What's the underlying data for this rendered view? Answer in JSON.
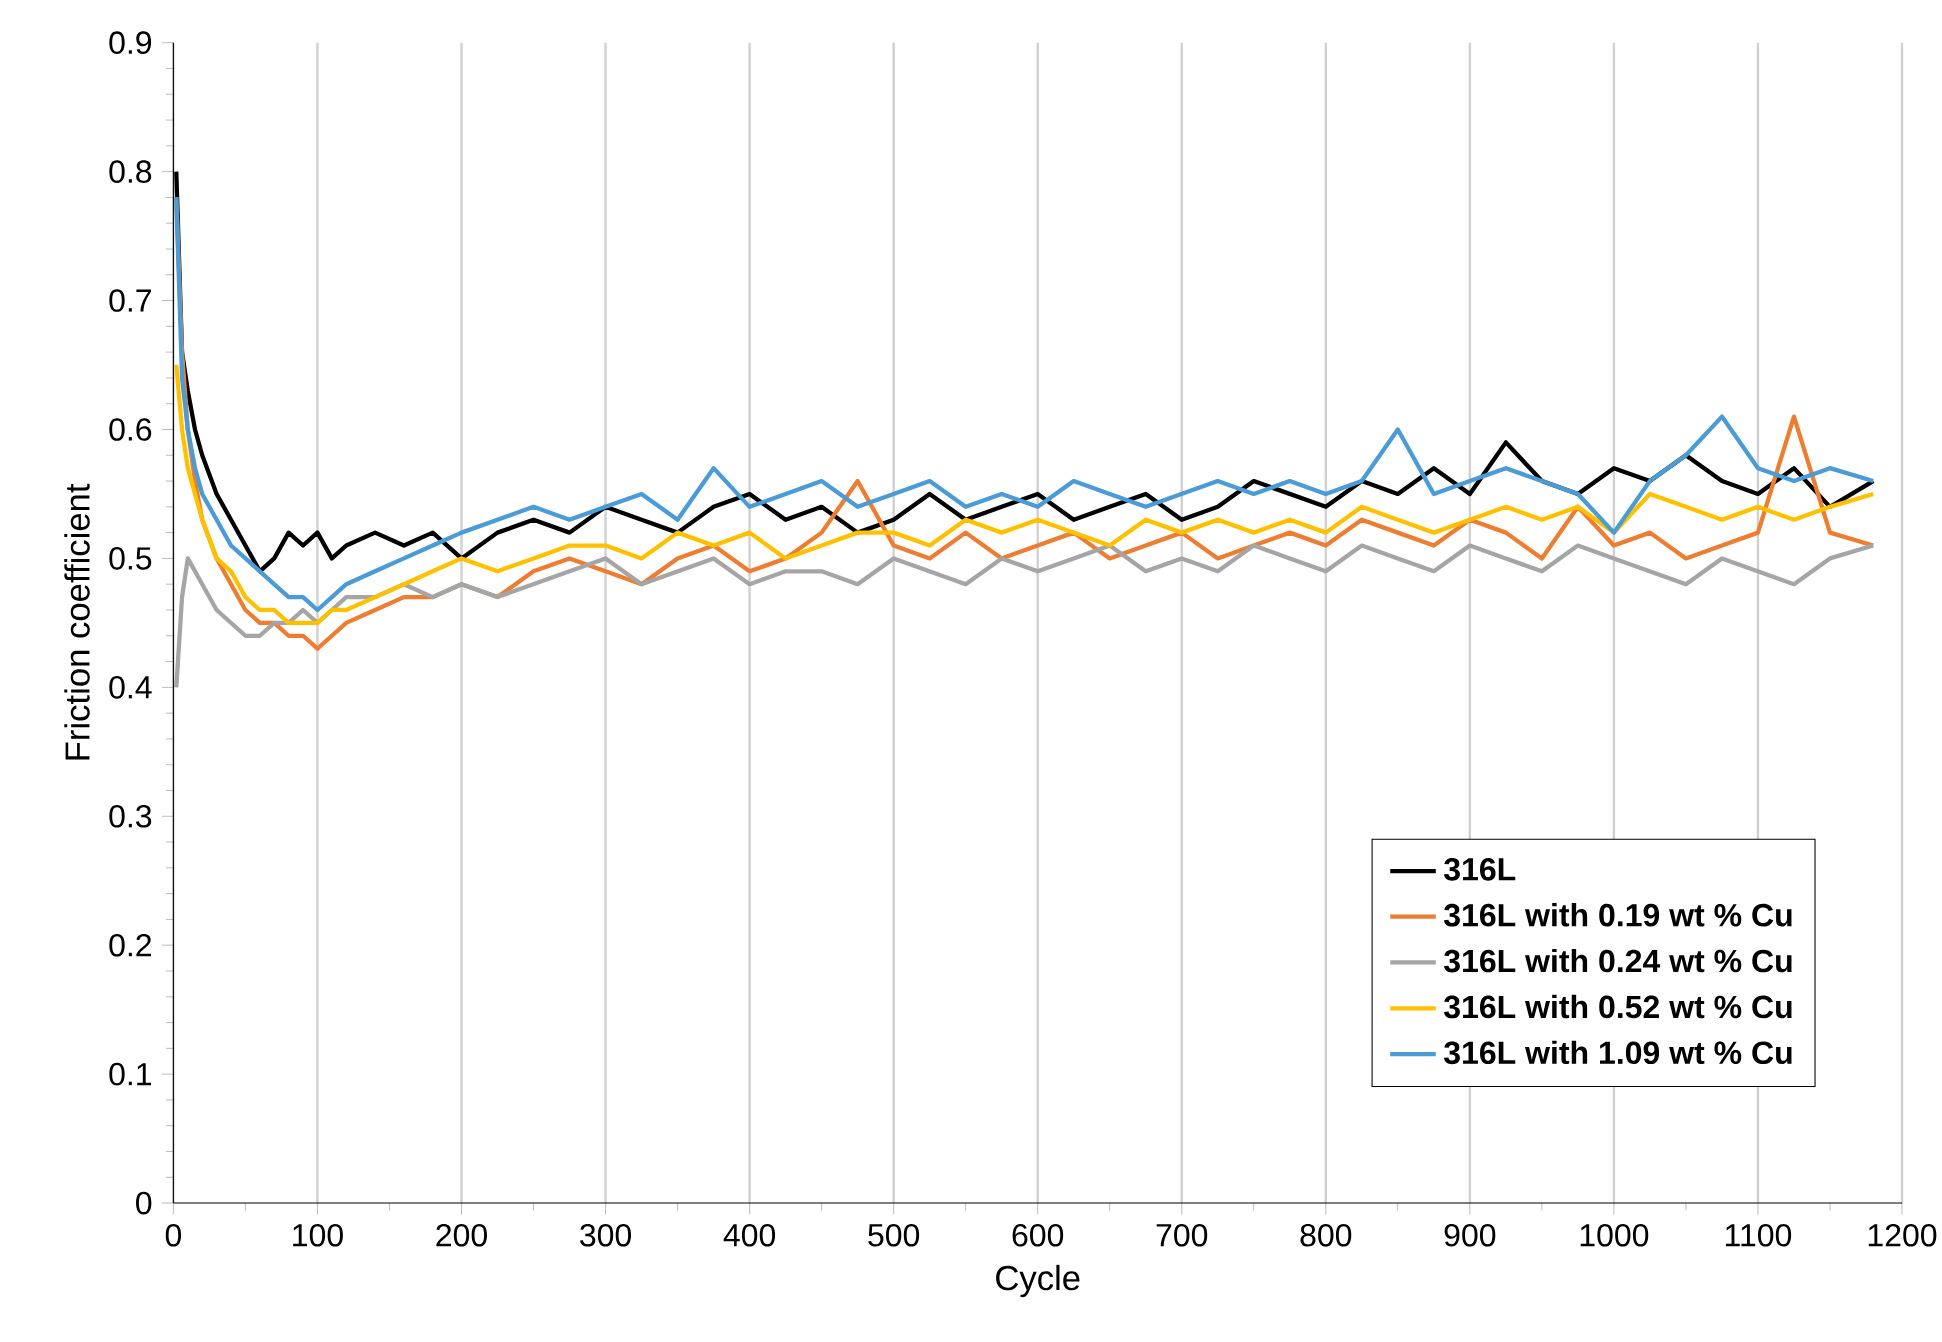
{
  "chart_data": {
    "type": "line",
    "xlabel": "Cycle",
    "ylabel": "Friction coefficient",
    "xlim": [
      0,
      1200
    ],
    "xticks": [
      0,
      100,
      200,
      300,
      400,
      500,
      600,
      700,
      800,
      900,
      1000,
      1100,
      1200
    ],
    "ylim": [
      0,
      0.9
    ],
    "yticks": [
      0,
      0.1,
      0.2,
      0.3,
      0.4,
      0.5,
      0.6,
      0.7,
      0.8,
      0.9
    ],
    "grid": "x",
    "legend": "bottom right",
    "marker": "none",
    "line_style": "solid",
    "x": [
      2,
      6,
      10,
      15,
      20,
      30,
      40,
      50,
      60,
      70,
      80,
      90,
      100,
      110,
      120,
      140,
      160,
      180,
      200,
      225,
      250,
      275,
      300,
      325,
      350,
      375,
      400,
      425,
      450,
      475,
      500,
      525,
      550,
      575,
      600,
      625,
      650,
      675,
      700,
      725,
      750,
      775,
      800,
      825,
      850,
      875,
      900,
      925,
      950,
      975,
      1000,
      1025,
      1050,
      1075,
      1100,
      1125,
      1150,
      1180
    ],
    "series": [
      {
        "name": "316L",
        "color": "#000000",
        "values": [
          0.8,
          0.66,
          0.63,
          0.6,
          0.58,
          0.55,
          0.53,
          0.51,
          0.49,
          0.5,
          0.52,
          0.51,
          0.52,
          0.5,
          0.51,
          0.52,
          0.51,
          0.52,
          0.5,
          0.52,
          0.53,
          0.52,
          0.54,
          0.53,
          0.52,
          0.54,
          0.55,
          0.53,
          0.54,
          0.52,
          0.53,
          0.55,
          0.53,
          0.54,
          0.55,
          0.53,
          0.54,
          0.55,
          0.53,
          0.54,
          0.56,
          0.55,
          0.54,
          0.56,
          0.55,
          0.57,
          0.55,
          0.59,
          0.56,
          0.55,
          0.57,
          0.56,
          0.58,
          0.56,
          0.55,
          0.57,
          0.54,
          0.56
        ]
      },
      {
        "name": "316L with 0.19 wt % Cu",
        "color": "#ed7d31",
        "values": [
          0.78,
          0.66,
          0.6,
          0.56,
          0.53,
          0.5,
          0.48,
          0.46,
          0.45,
          0.45,
          0.44,
          0.44,
          0.43,
          0.44,
          0.45,
          0.46,
          0.47,
          0.47,
          0.48,
          0.47,
          0.49,
          0.5,
          0.49,
          0.48,
          0.5,
          0.51,
          0.49,
          0.5,
          0.52,
          0.56,
          0.51,
          0.5,
          0.52,
          0.5,
          0.51,
          0.52,
          0.5,
          0.51,
          0.52,
          0.5,
          0.51,
          0.52,
          0.51,
          0.53,
          0.52,
          0.51,
          0.53,
          0.52,
          0.5,
          0.54,
          0.51,
          0.52,
          0.5,
          0.51,
          0.52,
          0.61,
          0.52,
          0.51
        ]
      },
      {
        "name": "316L with 0.24 wt % Cu",
        "color": "#a5a5a5",
        "values": [
          0.4,
          0.47,
          0.5,
          0.49,
          0.48,
          0.46,
          0.45,
          0.44,
          0.44,
          0.45,
          0.45,
          0.46,
          0.45,
          0.46,
          0.47,
          0.47,
          0.48,
          0.47,
          0.48,
          0.47,
          0.48,
          0.49,
          0.5,
          0.48,
          0.49,
          0.5,
          0.48,
          0.49,
          0.49,
          0.48,
          0.5,
          0.49,
          0.48,
          0.5,
          0.49,
          0.5,
          0.51,
          0.49,
          0.5,
          0.49,
          0.51,
          0.5,
          0.49,
          0.51,
          0.5,
          0.49,
          0.51,
          0.5,
          0.49,
          0.51,
          0.5,
          0.49,
          0.48,
          0.5,
          0.49,
          0.48,
          0.5,
          0.51
        ]
      },
      {
        "name": "316L with 0.52 wt % Cu",
        "color": "#ffc000",
        "values": [
          0.65,
          0.6,
          0.57,
          0.55,
          0.53,
          0.5,
          0.49,
          0.47,
          0.46,
          0.46,
          0.45,
          0.45,
          0.45,
          0.46,
          0.46,
          0.47,
          0.48,
          0.49,
          0.5,
          0.49,
          0.5,
          0.51,
          0.51,
          0.5,
          0.52,
          0.51,
          0.52,
          0.5,
          0.51,
          0.52,
          0.52,
          0.51,
          0.53,
          0.52,
          0.53,
          0.52,
          0.51,
          0.53,
          0.52,
          0.53,
          0.52,
          0.53,
          0.52,
          0.54,
          0.53,
          0.52,
          0.53,
          0.54,
          0.53,
          0.54,
          0.52,
          0.55,
          0.54,
          0.53,
          0.54,
          0.53,
          0.54,
          0.55
        ]
      },
      {
        "name": "316L with 1.09 wt % Cu",
        "color": "#4a9bd6",
        "values": [
          0.78,
          0.64,
          0.6,
          0.57,
          0.55,
          0.53,
          0.51,
          0.5,
          0.49,
          0.48,
          0.47,
          0.47,
          0.46,
          0.47,
          0.48,
          0.49,
          0.5,
          0.51,
          0.52,
          0.53,
          0.54,
          0.53,
          0.54,
          0.55,
          0.53,
          0.57,
          0.54,
          0.55,
          0.56,
          0.54,
          0.55,
          0.56,
          0.54,
          0.55,
          0.54,
          0.56,
          0.55,
          0.54,
          0.55,
          0.56,
          0.55,
          0.56,
          0.55,
          0.56,
          0.6,
          0.55,
          0.56,
          0.57,
          0.56,
          0.55,
          0.52,
          0.56,
          0.58,
          0.61,
          0.57,
          0.56,
          0.57,
          0.56
        ]
      }
    ]
  }
}
